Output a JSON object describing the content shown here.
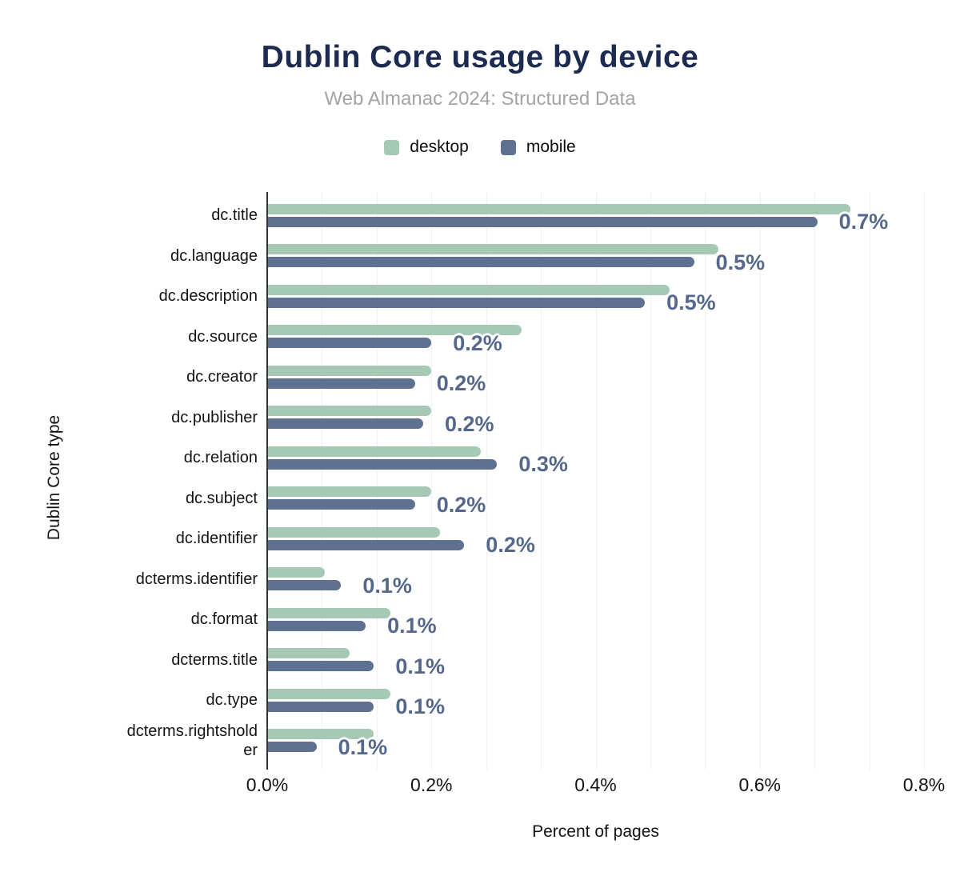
{
  "colors": {
    "title": "#1d2b50",
    "subtitle": "#a4a4a4",
    "annotation": "#55688c",
    "gridline": "#efeff1",
    "axis_line": "#333333",
    "desktop": "#a6c9b6",
    "mobile": "#5f7190"
  },
  "legend": {
    "items": [
      {
        "label": "desktop",
        "color": "#a6c9b6"
      },
      {
        "label": "mobile",
        "color": "#5f7190"
      }
    ]
  },
  "chart_data": {
    "type": "bar",
    "orientation": "horizontal",
    "title": "Dublin Core usage by device",
    "subtitle": "Web Almanac 2024: Structured Data",
    "xlabel": "Percent of pages",
    "ylabel": "Dublin Core type",
    "xlim": [
      0,
      0.8
    ],
    "x_tick_labels": [
      "0.0%",
      "0.2%",
      "0.4%",
      "0.6%",
      "0.8%"
    ],
    "grid": "vertical, 2 minor gridlines between each major (12 divisions)",
    "legend_position": "top",
    "categories": [
      "dc.title",
      "dc.language",
      "dc.description",
      "dc.source",
      "dc.creator",
      "dc.publisher",
      "dc.relation",
      "dc.subject",
      "dc.identifier",
      "dcterms.identifier",
      "dc.format",
      "dcterms.title",
      "dc.type",
      "dcterms.rightsholder"
    ],
    "category_display_lines": {
      "dcterms.rightsholder": [
        "dcterms.rightshold",
        "er"
      ]
    },
    "series": [
      {
        "name": "desktop",
        "color": "#a6c9b6",
        "values": [
          0.71,
          0.55,
          0.49,
          0.31,
          0.2,
          0.2,
          0.26,
          0.2,
          0.21,
          0.07,
          0.15,
          0.1,
          0.15,
          0.13
        ]
      },
      {
        "name": "mobile",
        "color": "#5f7190",
        "values": [
          0.67,
          0.52,
          0.46,
          0.2,
          0.18,
          0.19,
          0.28,
          0.18,
          0.24,
          0.09,
          0.12,
          0.13,
          0.13,
          0.06
        ]
      }
    ],
    "annotations": {
      "attached_to_series": "mobile",
      "labels": [
        "0.7%",
        "0.5%",
        "0.5%",
        "0.2%",
        "0.2%",
        "0.2%",
        "0.3%",
        "0.2%",
        "0.2%",
        "0.1%",
        "0.1%",
        "0.1%",
        "0.1%",
        "0.1%"
      ]
    }
  }
}
